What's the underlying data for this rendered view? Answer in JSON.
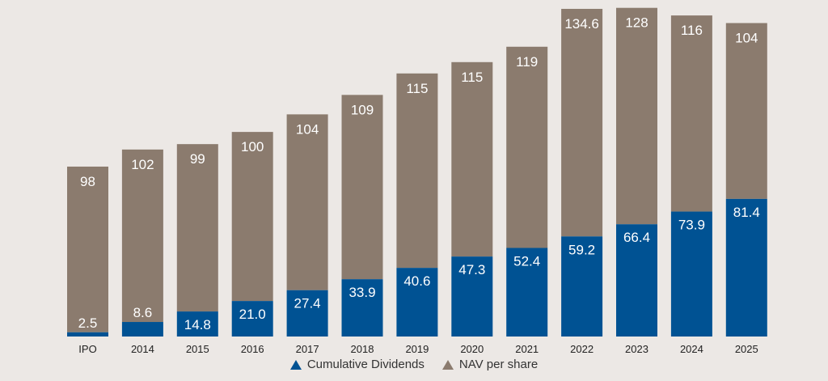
{
  "chart_data": {
    "type": "bar",
    "stacked": true,
    "title": "",
    "xlabel": "",
    "ylabel": "",
    "categories": [
      "IPO",
      "2014",
      "2015",
      "2016",
      "2017",
      "2018",
      "2019",
      "2020",
      "2021",
      "2022",
      "2023",
      "2024",
      "2025"
    ],
    "series": [
      {
        "name": "Cumulative Dividends",
        "color": "#005293",
        "values": [
          2.5,
          8.6,
          14.8,
          21.0,
          27.4,
          33.9,
          40.6,
          47.3,
          52.4,
          59.2,
          66.4,
          73.9,
          81.4
        ],
        "labels": [
          "2.5",
          "8.6",
          "14.8",
          "21.0",
          "27.4",
          "33.9",
          "40.6",
          "47.3",
          "52.4",
          "59.2",
          "66.4",
          "73.9",
          "81.4"
        ]
      },
      {
        "name": "NAV per share",
        "color": "#8b7b6e",
        "values": [
          98,
          102,
          99,
          100,
          104,
          109,
          115,
          115,
          119,
          134.6,
          128,
          116,
          104
        ],
        "labels": [
          "98",
          "102",
          "99",
          "100",
          "104",
          "109",
          "115",
          "115",
          "119",
          "134.6",
          "128",
          "116",
          "104"
        ]
      }
    ],
    "ylim": [
      0,
      190
    ],
    "grid": false,
    "legend": "bottom-center"
  }
}
